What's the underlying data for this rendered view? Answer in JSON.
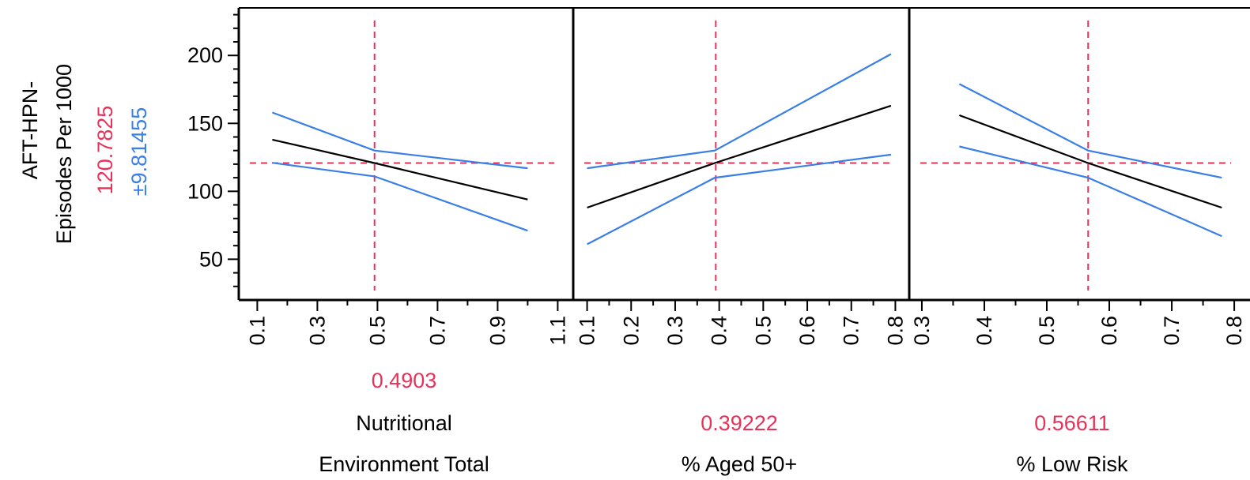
{
  "chart_data": {
    "type": "line",
    "ylabel": {
      "lines": [
        "AFT-HPN-",
        "Episodes Per 1000"
      ],
      "current_value": "120.7825",
      "interval": "±9.81455"
    },
    "y_axis": {
      "ylim": [
        20,
        235
      ],
      "ticks": [
        50,
        100,
        150,
        200
      ]
    },
    "colors": {
      "prediction": "#000000",
      "confidence": "#3a7ee8",
      "reference": "#e8325a"
    },
    "reference_y": 120.7825,
    "panels": [
      {
        "xlim": [
          0.07,
          1.12
        ],
        "ticks": [
          0.1,
          0.3,
          0.5,
          0.7,
          0.9,
          1.1
        ],
        "tick_labels": [
          "0.1",
          "0.3",
          "0.5",
          "0.7",
          "0.9",
          "1.1"
        ],
        "current_value_label": "0.4903",
        "current_value": 0.4903,
        "label_lines": [
          "Nutritional",
          "Environment Total"
        ],
        "x": [
          0.15,
          0.49,
          1.0
        ],
        "prediction": [
          138,
          120.8,
          94
        ],
        "upper": [
          158,
          130,
          117
        ],
        "lower": [
          121,
          111,
          71
        ]
      },
      {
        "xlim": [
          0.09,
          0.81
        ],
        "ticks": [
          0.1,
          0.2,
          0.3,
          0.4,
          0.5,
          0.6,
          0.7,
          0.8
        ],
        "tick_labels": [
          "0.1",
          "0.2",
          "0.3",
          "0.4",
          "0.5",
          "0.6",
          "0.7",
          "0.8"
        ],
        "current_value_label": "0.39222",
        "current_value": 0.39222,
        "label_lines": [
          "",
          "% Aged 50+"
        ],
        "x": [
          0.1,
          0.39,
          0.79
        ],
        "prediction": [
          88,
          120.8,
          163
        ],
        "upper": [
          117,
          130,
          201
        ],
        "lower": [
          61,
          110,
          127
        ]
      },
      {
        "xlim": [
          0.295,
          0.81
        ],
        "ticks": [
          0.3,
          0.4,
          0.5,
          0.6,
          0.7,
          0.8
        ],
        "tick_labels": [
          "0.3",
          "0.4",
          "0.5",
          "0.6",
          "0.7",
          "0.8"
        ],
        "current_value_label": "0.56611",
        "current_value": 0.56611,
        "label_lines": [
          "",
          "% Low Risk"
        ],
        "x": [
          0.36,
          0.566,
          0.78
        ],
        "prediction": [
          156,
          120.8,
          88
        ],
        "upper": [
          179,
          130,
          110
        ],
        "lower": [
          133,
          110,
          67
        ]
      }
    ]
  }
}
